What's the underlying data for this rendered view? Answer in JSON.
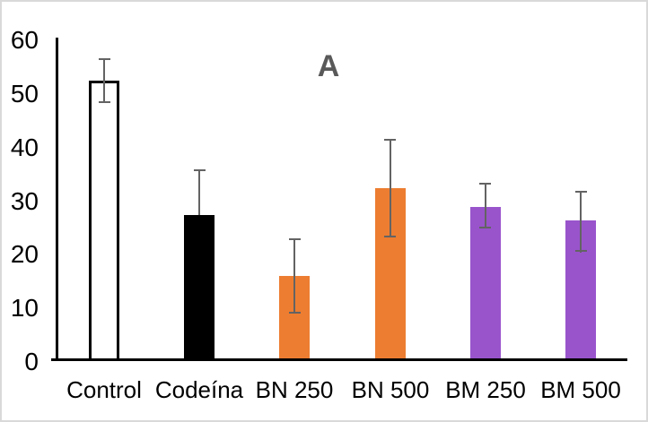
{
  "window": {
    "background": "#ffffff",
    "frame_border_color": "#d9d9d9"
  },
  "chart_data": {
    "type": "bar",
    "title": "A",
    "title_color": "#595959",
    "categories": [
      "Control",
      "Codeína",
      "BN 250",
      "BN 500",
      "BM 250",
      "BM 500"
    ],
    "values": [
      52,
      27,
      15.5,
      32,
      28.5,
      26
    ],
    "error_plus": [
      4.2,
      8.5,
      7,
      9.2,
      4.5,
      5.5
    ],
    "error_minus": [
      4.1,
      0,
      7,
      9.2,
      4.1,
      6
    ],
    "bar_fills": [
      "#ffffff",
      "#000000",
      "#ed7d31",
      "#ed7d31",
      "#9954cc",
      "#9954cc"
    ],
    "bar_borders": [
      "#000000",
      "none",
      "none",
      "none",
      "none",
      "none"
    ],
    "error_bar_color": "#636363",
    "axis_color": "#000000",
    "tick_label_color": "#000000",
    "xlabel": "",
    "ylabel": "",
    "ylim": [
      0,
      60
    ],
    "yticks": [
      0,
      10,
      20,
      30,
      40,
      50,
      60
    ],
    "grid": false,
    "legend": false
  }
}
